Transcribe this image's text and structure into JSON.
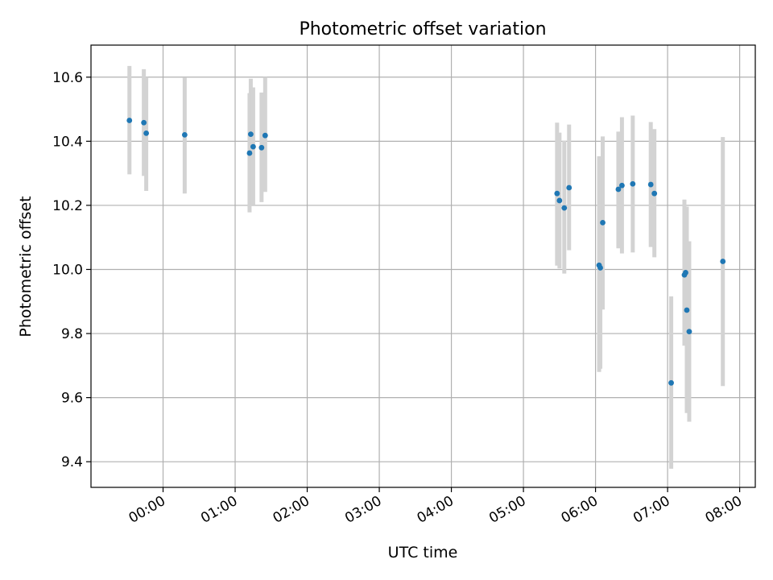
{
  "chart_data": {
    "type": "scatter",
    "title": "Photometric offset variation",
    "xlabel": "UTC time",
    "ylabel": "Photometric offset",
    "x_unit": "UTC time (HH:MM, day 2 after midnight)",
    "xlim": [
      "23:00",
      "08:13"
    ],
    "ylim": [
      9.32,
      10.7
    ],
    "x_ticks": [
      {
        "t": "00:00",
        "label": "00:00"
      },
      {
        "t": "01:00",
        "label": "01:00"
      },
      {
        "t": "02:00",
        "label": "02:00"
      },
      {
        "t": "03:00",
        "label": "03:00"
      },
      {
        "t": "04:00",
        "label": "04:00"
      },
      {
        "t": "05:00",
        "label": "05:00"
      },
      {
        "t": "06:00",
        "label": "06:00"
      },
      {
        "t": "07:00",
        "label": "07:00"
      },
      {
        "t": "08:00",
        "label": "08:00"
      }
    ],
    "y_ticks": [
      {
        "v": 9.4,
        "label": "9.4"
      },
      {
        "v": 9.6,
        "label": "9.6"
      },
      {
        "v": 9.8,
        "label": "9.8"
      },
      {
        "v": 10.0,
        "label": "10.0"
      },
      {
        "v": 10.2,
        "label": "10.2"
      },
      {
        "v": 10.4,
        "label": "10.4"
      },
      {
        "v": 10.6,
        "label": "10.6"
      }
    ],
    "grid": true,
    "marker_color": "#1f77b4",
    "errorbar_color": "#d3d3d3",
    "points": [
      {
        "t": "23:32",
        "y": 10.465,
        "lo": 10.297,
        "hi": 10.635
      },
      {
        "t": "23:44",
        "y": 10.458,
        "lo": 10.292,
        "hi": 10.625
      },
      {
        "t": "23:46",
        "y": 10.425,
        "lo": 10.245,
        "hi": 10.6
      },
      {
        "t": "00:18",
        "y": 10.42,
        "lo": 10.237,
        "hi": 10.598
      },
      {
        "t": "01:12",
        "y": 10.363,
        "lo": 10.178,
        "hi": 10.55
      },
      {
        "t": "01:13",
        "y": 10.422,
        "lo": 10.245,
        "hi": 10.595
      },
      {
        "t": "01:15",
        "y": 10.383,
        "lo": 10.2,
        "hi": 10.568
      },
      {
        "t": "01:22",
        "y": 10.38,
        "lo": 10.21,
        "hi": 10.552
      },
      {
        "t": "01:25",
        "y": 10.418,
        "lo": 10.242,
        "hi": 10.6
      },
      {
        "t": "05:28",
        "y": 10.237,
        "lo": 10.012,
        "hi": 10.458
      },
      {
        "t": "05:30",
        "y": 10.215,
        "lo": 10.003,
        "hi": 10.427
      },
      {
        "t": "05:34",
        "y": 10.192,
        "lo": 9.987,
        "hi": 10.402
      },
      {
        "t": "05:38",
        "y": 10.255,
        "lo": 10.06,
        "hi": 10.452
      },
      {
        "t": "06:03",
        "y": 10.013,
        "lo": 9.68,
        "hi": 10.353
      },
      {
        "t": "06:04",
        "y": 10.005,
        "lo": 9.69,
        "hi": 10.32
      },
      {
        "t": "06:06",
        "y": 10.146,
        "lo": 9.875,
        "hi": 10.415
      },
      {
        "t": "06:19",
        "y": 10.25,
        "lo": 10.066,
        "hi": 10.43
      },
      {
        "t": "06:22",
        "y": 10.262,
        "lo": 10.05,
        "hi": 10.475
      },
      {
        "t": "06:31",
        "y": 10.267,
        "lo": 10.053,
        "hi": 10.48
      },
      {
        "t": "06:46",
        "y": 10.265,
        "lo": 10.07,
        "hi": 10.46
      },
      {
        "t": "06:49",
        "y": 10.237,
        "lo": 10.038,
        "hi": 10.438
      },
      {
        "t": "07:03",
        "y": 9.646,
        "lo": 9.378,
        "hi": 9.916
      },
      {
        "t": "07:14",
        "y": 9.983,
        "lo": 9.762,
        "hi": 10.218
      },
      {
        "t": "07:15",
        "y": 9.99,
        "lo": 9.782,
        "hi": 10.196
      },
      {
        "t": "07:16",
        "y": 9.873,
        "lo": 9.552,
        "hi": 10.196
      },
      {
        "t": "07:18",
        "y": 9.806,
        "lo": 9.525,
        "hi": 10.088
      },
      {
        "t": "07:46",
        "y": 10.025,
        "lo": 9.636,
        "hi": 10.413
      }
    ]
  }
}
